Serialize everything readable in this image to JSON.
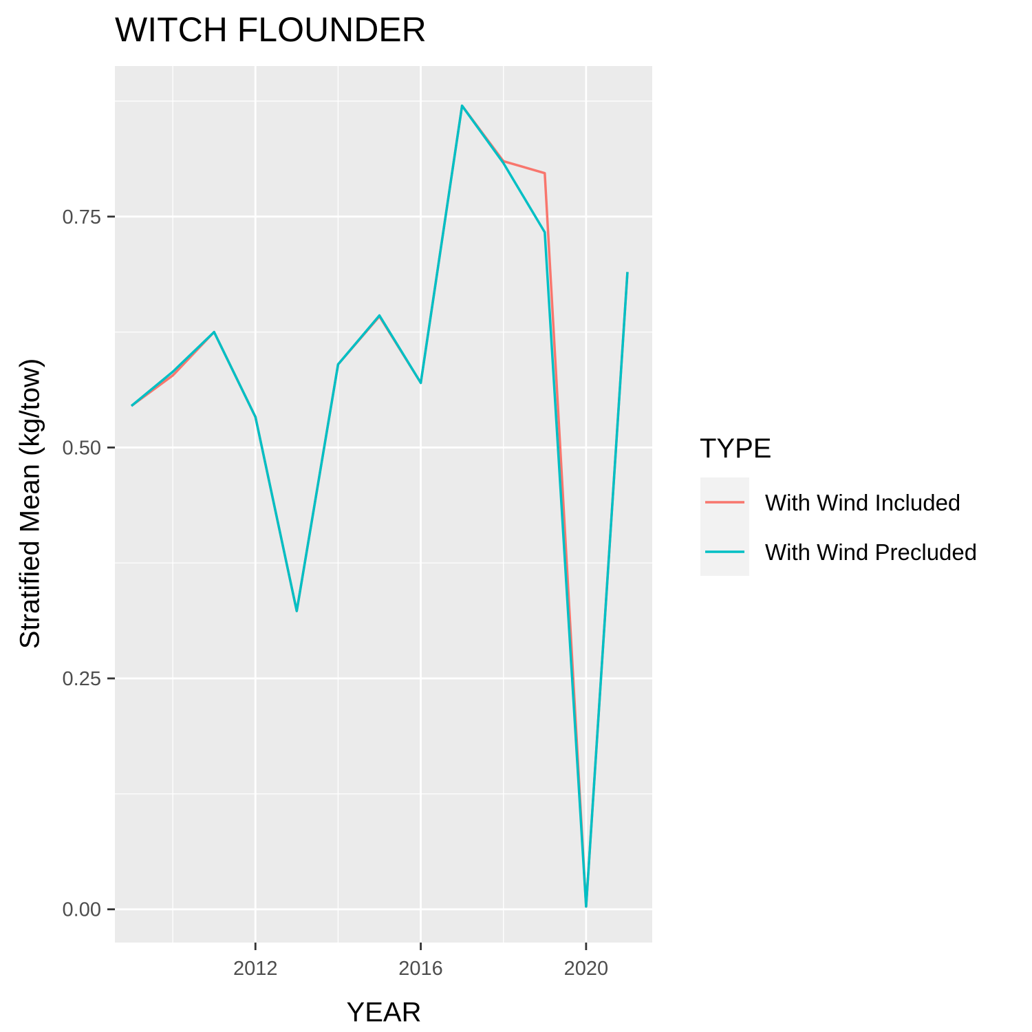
{
  "chart_data": {
    "type": "line",
    "title": "WITCH FLOUNDER",
    "xlabel": "YEAR",
    "ylabel": "Stratified Mean (kg/tow)",
    "x": [
      2009,
      2010,
      2011,
      2012,
      2013,
      2014,
      2015,
      2016,
      2017,
      2018,
      2019,
      2020,
      2021
    ],
    "series": [
      {
        "name": "With Wind Included",
        "color": "#F8766D",
        "values": [
          0.545,
          0.578,
          0.625,
          0.533,
          0.323,
          0.59,
          0.642,
          0.57,
          0.87,
          0.81,
          0.797,
          0.003,
          0.69
        ]
      },
      {
        "name": "With Wind Precluded",
        "color": "#00BFC4",
        "values": [
          0.545,
          0.582,
          0.625,
          0.533,
          0.323,
          0.59,
          0.643,
          0.57,
          0.87,
          0.808,
          0.733,
          0.003,
          0.69
        ]
      }
    ],
    "xlim": [
      2008.6,
      2021.6
    ],
    "ylim": [
      -0.036,
      0.913
    ],
    "x_ticks": [
      2012,
      2016,
      2020
    ],
    "x_minor_ticks": [
      2010,
      2014,
      2018
    ],
    "y_ticks": [
      0.0,
      0.25,
      0.5,
      0.75
    ],
    "y_tick_labels": [
      "0.00",
      "0.25",
      "0.50",
      "0.75"
    ],
    "y_minor_ticks": [
      0.125,
      0.375,
      0.625,
      0.875
    ],
    "grid": true,
    "legend": {
      "title": "TYPE",
      "placement": "right"
    },
    "colors": {
      "panel": "#EBEBEB",
      "grid": "#FFFFFF",
      "key_background": "#F2F2F2"
    }
  }
}
